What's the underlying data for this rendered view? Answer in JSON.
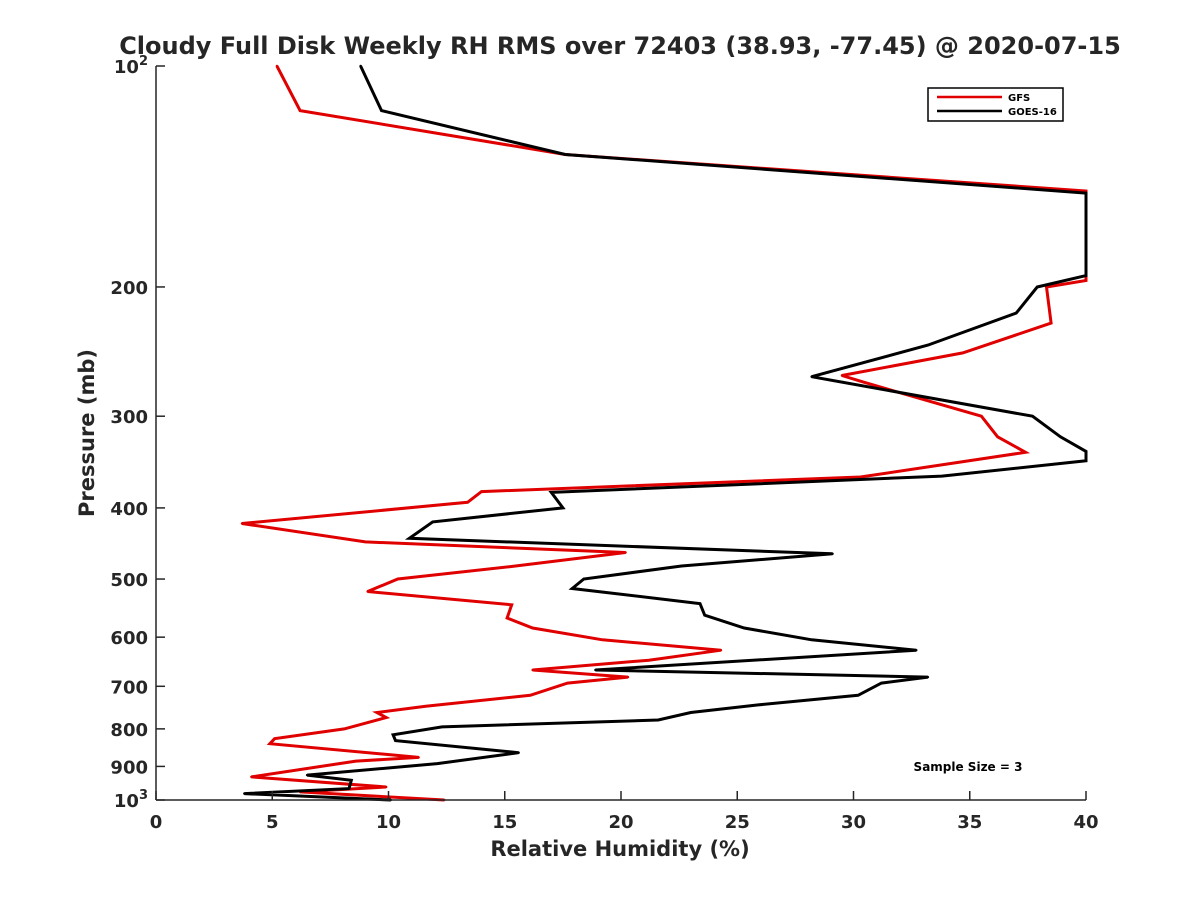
{
  "chart_data": {
    "type": "line",
    "title": "Cloudy Full Disk Weekly RH RMS over 72403 (38.93, -77.45) @ 2020-07-15",
    "xlabel": "Relative Humidity (%)",
    "ylabel": "Pressure (mb)",
    "xlim": [
      0,
      40
    ],
    "ylim": [
      100,
      1000
    ],
    "yscale": "log",
    "y_reversed": true,
    "grid": false,
    "legend_position": "top-right",
    "x_ticks": [
      "0",
      "5",
      "10",
      "15",
      "20",
      "25",
      "30",
      "35",
      "40"
    ],
    "y_ticks": [
      {
        "value": 100,
        "base": "10",
        "exp": "2"
      },
      {
        "value": 200,
        "label": "200"
      },
      {
        "value": 300,
        "label": "300"
      },
      {
        "value": 400,
        "label": "400"
      },
      {
        "value": 500,
        "label": "500"
      },
      {
        "value": 600,
        "label": "600"
      },
      {
        "value": 700,
        "label": "700"
      },
      {
        "value": 800,
        "label": "800"
      },
      {
        "value": 900,
        "label": "900"
      },
      {
        "value": 1000,
        "base": "10",
        "exp": "3"
      }
    ],
    "annotation": "Sample Size = 3",
    "series": [
      {
        "name": "GFS",
        "color": "#e00000",
        "points": [
          [
            5.2,
            100
          ],
          [
            6.2,
            115
          ],
          [
            17.6,
            132
          ],
          [
            40,
            148
          ],
          [
            40,
            196
          ],
          [
            38.3,
            200
          ],
          [
            38.5,
            224
          ],
          [
            34.7,
            246
          ],
          [
            29.5,
            264
          ],
          [
            30.5,
            270
          ],
          [
            35.5,
            300
          ],
          [
            36.2,
            320
          ],
          [
            37.4,
            336
          ],
          [
            30.3,
            363
          ],
          [
            14.0,
            380
          ],
          [
            13.4,
            393
          ],
          [
            3.7,
            420
          ],
          [
            9.0,
            445
          ],
          [
            20.2,
            460
          ],
          [
            15.2,
            481
          ],
          [
            10.4,
            500
          ],
          [
            9.1,
            520
          ],
          [
            15.3,
            542
          ],
          [
            15.1,
            565
          ],
          [
            16.2,
            583
          ],
          [
            19.2,
            605
          ],
          [
            24.3,
            625
          ],
          [
            21.2,
            645
          ],
          [
            16.2,
            665
          ],
          [
            20.3,
            680
          ],
          [
            17.7,
            693
          ],
          [
            16.1,
            720
          ],
          [
            11.6,
            745
          ],
          [
            9.5,
            760
          ],
          [
            9.9,
            772
          ],
          [
            8.1,
            800
          ],
          [
            5.1,
            825
          ],
          [
            4.9,
            838
          ],
          [
            11.3,
            875
          ],
          [
            8.6,
            885
          ],
          [
            4.1,
            930
          ],
          [
            9.9,
            960
          ],
          [
            6.2,
            975
          ],
          [
            12.4,
            1000
          ]
        ]
      },
      {
        "name": "GOES-16",
        "color": "#000000",
        "points": [
          [
            8.8,
            100
          ],
          [
            9.7,
            115
          ],
          [
            17.6,
            132
          ],
          [
            40,
            149
          ],
          [
            40,
            193
          ],
          [
            37.9,
            200
          ],
          [
            37.0,
            217
          ],
          [
            33.2,
            240
          ],
          [
            28.2,
            265
          ],
          [
            37.7,
            300
          ],
          [
            38.9,
            320
          ],
          [
            40,
            335
          ],
          [
            40,
            345
          ],
          [
            33.8,
            362
          ],
          [
            17.0,
            381
          ],
          [
            17.5,
            400
          ],
          [
            11.9,
            418
          ],
          [
            10.9,
            440
          ],
          [
            29.1,
            462
          ],
          [
            22.6,
            480
          ],
          [
            18.4,
            500
          ],
          [
            17.9,
            515
          ],
          [
            23.4,
            540
          ],
          [
            23.6,
            560
          ],
          [
            25.3,
            583
          ],
          [
            28.2,
            605
          ],
          [
            32.7,
            625
          ],
          [
            18.9,
            665
          ],
          [
            33.2,
            680
          ],
          [
            31.2,
            693
          ],
          [
            30.2,
            720
          ],
          [
            25.9,
            742
          ],
          [
            23.0,
            760
          ],
          [
            21.6,
            778
          ],
          [
            12.3,
            795
          ],
          [
            10.2,
            815
          ],
          [
            10.3,
            830
          ],
          [
            15.6,
            862
          ],
          [
            12.1,
            892
          ],
          [
            6.5,
            925
          ],
          [
            8.4,
            940
          ],
          [
            8.3,
            965
          ],
          [
            3.8,
            980
          ],
          [
            10.1,
            1000
          ]
        ]
      }
    ]
  }
}
